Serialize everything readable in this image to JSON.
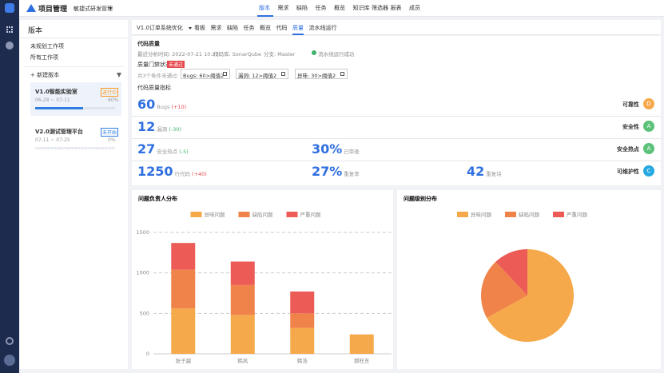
{
  "header": {
    "app": "项目管理",
    "project": "敏捷式研发管理",
    "nav": [
      "版本",
      "需求",
      "缺陷",
      "任务",
      "概览",
      "知识库",
      "筛选器",
      "报表",
      "成员"
    ]
  },
  "sidebar": {
    "title": "版本",
    "links": [
      "未规划工作项",
      "所有工作项"
    ],
    "new_version": "+ 新建版本",
    "versions": [
      {
        "name": "V1.0智能实验室",
        "status": "进行中",
        "status_color": "#f59a23",
        "dates": "06-28 ~ 07-11",
        "progress": 60,
        "progress_label": "60%"
      },
      {
        "name": "V2.0测试管理平台",
        "status": "未开始",
        "status_color": "#2f7de1",
        "dates": "07-11 ~ 07-25",
        "progress": 0,
        "progress_label": "0%"
      }
    ]
  },
  "tabs": {
    "version": "V1.0订单系统优化",
    "items": [
      "看板",
      "需求",
      "缺陷",
      "任务",
      "概览",
      "代码",
      "质量",
      "流水线运行"
    ]
  },
  "quality": {
    "title": "代码质量",
    "meta": [
      "最近分析时间: 2022-07-21 10:22",
      "代码库: SonarQube",
      "分支: Master"
    ],
    "pipeline": "流水线运行成功",
    "gate_label": "质量门禁状态",
    "gate_status": "未通过",
    "failed_text": "共3个条件未通过:",
    "conditions": [
      "Bugs: 60>阈值2",
      "漏洞: 12>阈值2",
      "异味: 30>阈值2"
    ],
    "metrics_title": "代码质量指标",
    "rows": [
      {
        "items": [
          {
            "value": "60",
            "unit": "Bugs",
            "delta": "(+10)",
            "delta_color": "#e5484d"
          }
        ],
        "rating": "可靠性",
        "grade": "D",
        "grade_color": "#f5a94b"
      },
      {
        "items": [
          {
            "value": "12",
            "unit": "漏洞",
            "delta": "(-30)",
            "delta_color": "#3fb26b"
          }
        ],
        "rating": "安全性",
        "grade": "A",
        "grade_color": "#5cc27a"
      },
      {
        "items": [
          {
            "value": "27",
            "unit": "安全热点",
            "delta": "(-5)",
            "delta_color": "#3fb26b"
          },
          {
            "value": "30%",
            "unit": "已审查"
          }
        ],
        "rating": "安全热点",
        "grade": "A",
        "grade_color": "#5cc27a"
      },
      {
        "items": [
          {
            "value": "1250",
            "unit": "行代码",
            "delta": "(+40)",
            "delta_color": "#e5484d"
          },
          {
            "value": "27%",
            "unit": "重复率"
          },
          {
            "value": "42",
            "unit": "重复块"
          }
        ],
        "rating": "可维护性",
        "grade": "C",
        "grade_color": "#26a9e0"
      }
    ]
  },
  "chart_data": [
    {
      "type": "bar",
      "stacked": true,
      "title": "问题负责人分布",
      "categories": [
        "张子越",
        "韩风",
        "韩浩",
        "郝旺东"
      ],
      "series": [
        {
          "name": "异味问题",
          "color": "#f5a94b",
          "values": [
            560,
            480,
            320,
            240
          ]
        },
        {
          "name": "缺陷问题",
          "color": "#f0834a",
          "values": [
            480,
            370,
            180,
            0
          ]
        },
        {
          "name": "严重问题",
          "color": "#ec5b56",
          "values": [
            330,
            290,
            270,
            0
          ]
        }
      ],
      "ylim": [
        0,
        1500
      ],
      "yticks": [
        0,
        500,
        1000,
        1500
      ],
      "grid": true
    },
    {
      "type": "pie",
      "title": "问题级别分布",
      "categories": [
        "异味问题",
        "缺陷问题",
        "严重问题"
      ],
      "values": [
        67,
        21,
        12
      ],
      "colors": [
        "#f5a94b",
        "#f0834a",
        "#ec5b56"
      ]
    }
  ]
}
